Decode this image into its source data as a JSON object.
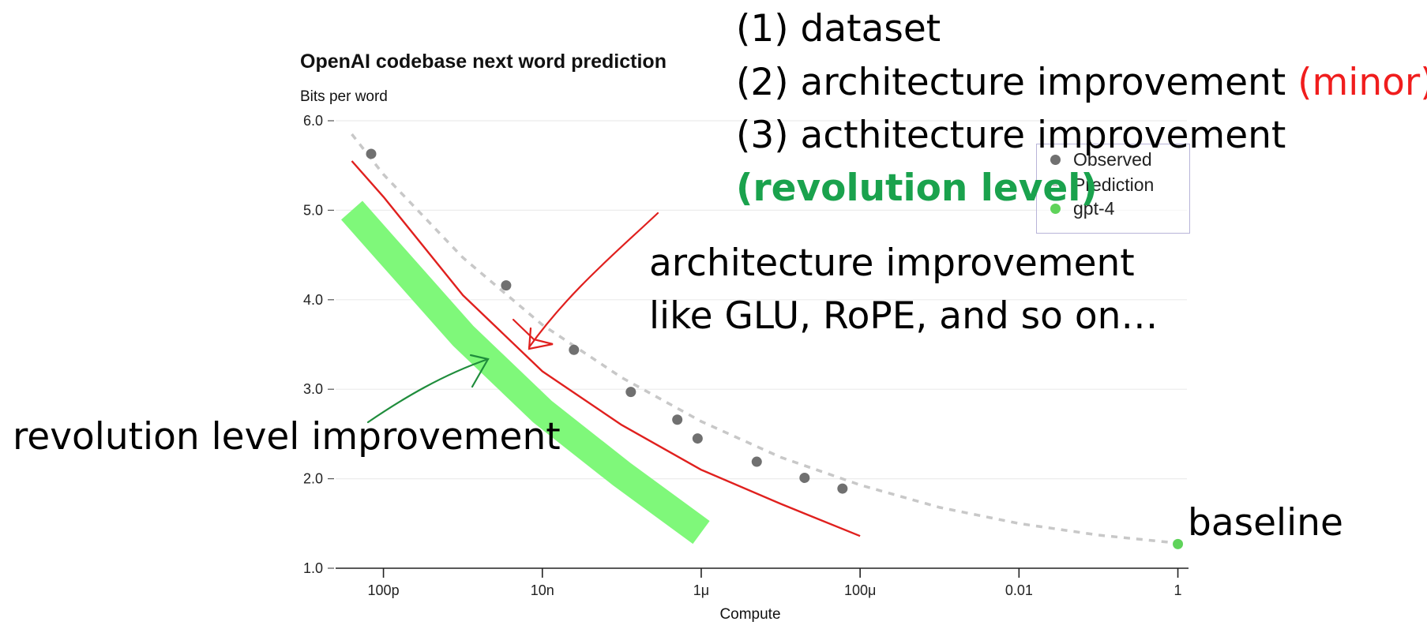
{
  "chart_data": {
    "type": "scatter",
    "title": "OpenAI codebase next word prediction",
    "ylabel": "Bits per word",
    "xlabel": "Compute",
    "x_scale": "log",
    "x_ticks": [
      {
        "value": 1e-10,
        "label": "100p"
      },
      {
        "value": 1e-08,
        "label": "10n"
      },
      {
        "value": 1e-06,
        "label": "1μ"
      },
      {
        "value": 0.0001,
        "label": "100μ"
      },
      {
        "value": 0.01,
        "label": "0.01"
      },
      {
        "value": 1,
        "label": "1"
      }
    ],
    "y_ticks": [
      {
        "value": 1.0,
        "label": "1.0"
      },
      {
        "value": 2.0,
        "label": "2.0"
      },
      {
        "value": 3.0,
        "label": "3.0"
      },
      {
        "value": 4.0,
        "label": "4.0"
      },
      {
        "value": 5.0,
        "label": "5.0"
      },
      {
        "value": 6.0,
        "label": "6.0"
      }
    ],
    "xlim": [
      2.5e-11,
      1.3
    ],
    "ylim": [
      1.0,
      6.0
    ],
    "grid": "horizontal",
    "legend_position": "top-right",
    "series": [
      {
        "name": "Observed",
        "type": "scatter",
        "color": "#707070",
        "x": [
          7e-11,
          3.5e-09,
          2.5e-08,
          1.3e-07,
          5e-07,
          9e-07,
          5e-06,
          2e-05,
          6e-05
        ],
        "y": [
          5.63,
          4.16,
          3.44,
          2.97,
          2.66,
          2.45,
          2.19,
          2.01,
          1.89
        ]
      },
      {
        "name": "Prediction",
        "type": "line",
        "dashed": true,
        "color": "#c8c8c8",
        "x": [
          4e-11,
          1e-10,
          1e-09,
          1e-08,
          1e-07,
          1e-06,
          1e-05,
          0.0001,
          0.001,
          0.01,
          0.1,
          1
        ],
        "y": [
          5.85,
          5.4,
          4.47,
          3.72,
          3.13,
          2.64,
          2.24,
          1.93,
          1.68,
          1.5,
          1.37,
          1.28
        ]
      },
      {
        "name": "gpt-4",
        "type": "scatter",
        "color": "#5fd35a",
        "x": [
          1
        ],
        "y": [
          1.27
        ]
      }
    ],
    "annotations": {
      "minor_curve": {
        "color": "#e0201e",
        "x": [
          4e-11,
          1e-10,
          1e-09,
          1e-08,
          1e-07,
          1e-06,
          1e-05,
          0.0001
        ],
        "y": [
          5.55,
          5.15,
          4.05,
          3.2,
          2.6,
          2.1,
          1.72,
          1.36
        ]
      },
      "revolution_band": {
        "color": "#7ff87a",
        "x": [
          4e-11,
          1e-10,
          1e-09,
          1e-08,
          1e-07,
          1e-06
        ],
        "y": [
          5.0,
          4.6,
          3.6,
          2.75,
          2.05,
          1.4
        ]
      }
    }
  },
  "legend": [
    {
      "label": "Observed",
      "color": "#707070"
    },
    {
      "label": "Prediction",
      "color": "#c8c8c8"
    },
    {
      "label": "gpt-4",
      "color": "#5fd35a"
    }
  ],
  "notes": {
    "line1": "(1) dataset",
    "line2_main": "(2) architecture improvement ",
    "line2_minor": "(minor)",
    "line3": "(3) acthitecture improvement",
    "line4": "(revolution level)",
    "arch_line1": "architecture improvement",
    "arch_line2": "like GLU, RoPE, and so on…",
    "revolution": "revolution level improvement",
    "baseline": "baseline"
  },
  "colors": {
    "red": "#f01d1d",
    "green": "#1aa24d"
  }
}
